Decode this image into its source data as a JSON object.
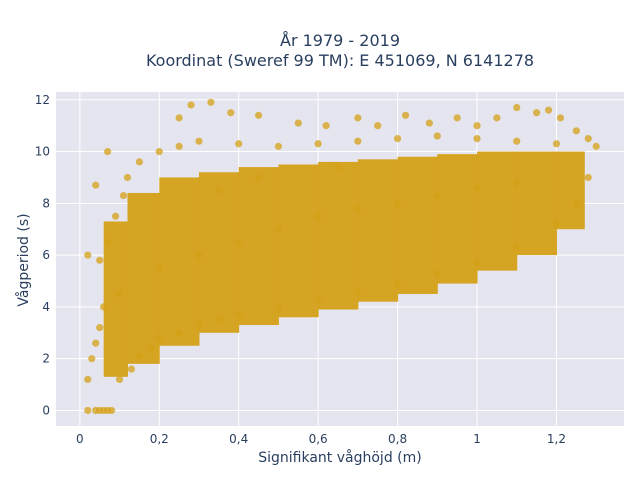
{
  "chart_data": {
    "type": "scatter",
    "title_lines": [
      "År 1979 - 2019",
      "Koordinat (Sweref 99 TM): E 451069, N 6141278"
    ],
    "xlabel": "Signifikant våghöjd (m)",
    "ylabel": "Vågperiod (s)",
    "xlim": [
      -0.06,
      1.37
    ],
    "ylim": [
      -0.6,
      12.3
    ],
    "xticks": [
      0,
      0.2,
      0.4,
      0.6,
      0.8,
      1,
      1.2
    ],
    "xtick_labels": [
      "0",
      "0,2",
      "0,4",
      "0,6",
      "0,8",
      "1",
      "1,2"
    ],
    "yticks": [
      0,
      2,
      4,
      6,
      8,
      10,
      12
    ],
    "ytick_labels": [
      "0",
      "2",
      "4",
      "6",
      "8",
      "10",
      "12"
    ],
    "grid": true,
    "marker_color": "#D4A017",
    "plot_background": "#E5E5EF",
    "series": [
      {
        "points": [
          [
            0.02,
            1.2
          ],
          [
            0.03,
            2.0
          ],
          [
            0.04,
            2.6
          ],
          [
            0.05,
            3.2
          ],
          [
            0.06,
            4.0
          ],
          [
            0.05,
            5.8
          ],
          [
            0.07,
            6.5
          ],
          [
            0.09,
            7.5
          ],
          [
            0.11,
            8.3
          ],
          [
            0.1,
            1.2
          ],
          [
            0.13,
            1.6
          ],
          [
            0.15,
            2.1
          ],
          [
            0.18,
            2.4
          ],
          [
            0.2,
            2.8
          ],
          [
            0.25,
            3.0
          ],
          [
            0.3,
            3.3
          ],
          [
            0.35,
            3.5
          ],
          [
            0.4,
            3.7
          ],
          [
            0.5,
            4.0
          ],
          [
            0.6,
            4.3
          ],
          [
            0.7,
            4.6
          ],
          [
            0.8,
            4.9
          ],
          [
            0.9,
            5.3
          ],
          [
            1.0,
            5.7
          ],
          [
            1.1,
            6.3
          ],
          [
            1.2,
            7.2
          ],
          [
            1.25,
            8.0
          ],
          [
            1.28,
            9.0
          ],
          [
            1.3,
            10.2
          ],
          [
            0.12,
            9.0
          ],
          [
            0.15,
            9.6
          ],
          [
            0.2,
            10.0
          ],
          [
            0.25,
            10.2
          ],
          [
            0.3,
            10.4
          ],
          [
            0.4,
            10.3
          ],
          [
            0.5,
            10.2
          ],
          [
            0.6,
            10.3
          ],
          [
            0.7,
            10.4
          ],
          [
            0.8,
            10.5
          ],
          [
            0.9,
            10.6
          ],
          [
            1.0,
            10.5
          ],
          [
            1.1,
            10.4
          ],
          [
            1.2,
            10.3
          ],
          [
            0.25,
            11.3
          ],
          [
            0.28,
            11.8
          ],
          [
            0.33,
            11.9
          ],
          [
            0.38,
            11.5
          ],
          [
            0.45,
            11.4
          ],
          [
            0.55,
            11.1
          ],
          [
            0.62,
            11.0
          ],
          [
            0.7,
            11.3
          ],
          [
            0.75,
            11.0
          ],
          [
            0.82,
            11.4
          ],
          [
            0.88,
            11.1
          ],
          [
            0.95,
            11.3
          ],
          [
            1.0,
            11.0
          ],
          [
            1.05,
            11.3
          ],
          [
            1.1,
            11.7
          ],
          [
            1.15,
            11.5
          ],
          [
            1.18,
            11.6
          ],
          [
            1.21,
            11.3
          ],
          [
            1.25,
            10.8
          ],
          [
            1.28,
            10.5
          ],
          [
            0.07,
            10.0
          ],
          [
            0.04,
            8.7
          ],
          [
            0.02,
            6.0
          ],
          [
            0.1,
            4.5
          ],
          [
            0.2,
            5.5
          ],
          [
            0.3,
            6.0
          ],
          [
            0.4,
            6.5
          ],
          [
            0.5,
            7.0
          ],
          [
            0.6,
            7.5
          ],
          [
            0.7,
            7.8
          ],
          [
            0.8,
            8.0
          ],
          [
            0.9,
            8.3
          ],
          [
            1.0,
            8.6
          ],
          [
            1.1,
            8.8
          ],
          [
            0.35,
            8.5
          ],
          [
            0.45,
            9.0
          ],
          [
            0.65,
            9.4
          ]
        ]
      }
    ],
    "bands": [
      {
        "x0": 0.06,
        "x1": 0.12,
        "y0": 1.3,
        "y1": 7.3
      },
      {
        "x0": 0.12,
        "x1": 0.2,
        "y0": 1.8,
        "y1": 8.4
      },
      {
        "x0": 0.2,
        "x1": 0.3,
        "y0": 2.5,
        "y1": 9.0
      },
      {
        "x0": 0.3,
        "x1": 0.4,
        "y0": 3.0,
        "y1": 9.2
      },
      {
        "x0": 0.4,
        "x1": 0.5,
        "y0": 3.3,
        "y1": 9.4
      },
      {
        "x0": 0.5,
        "x1": 0.6,
        "y0": 3.6,
        "y1": 9.5
      },
      {
        "x0": 0.6,
        "x1": 0.7,
        "y0": 3.9,
        "y1": 9.6
      },
      {
        "x0": 0.7,
        "x1": 0.8,
        "y0": 4.2,
        "y1": 9.7
      },
      {
        "x0": 0.8,
        "x1": 0.9,
        "y0": 4.5,
        "y1": 9.8
      },
      {
        "x0": 0.9,
        "x1": 1.0,
        "y0": 4.9,
        "y1": 9.9
      },
      {
        "x0": 1.0,
        "x1": 1.1,
        "y0": 5.4,
        "y1": 10.0
      },
      {
        "x0": 1.1,
        "x1": 1.2,
        "y0": 6.0,
        "y1": 10.0
      },
      {
        "x0": 1.2,
        "x1": 1.27,
        "y0": 7.0,
        "y1": 10.0
      }
    ],
    "zero_points": [
      [
        0.02,
        0
      ],
      [
        0.04,
        0
      ],
      [
        0.05,
        0
      ],
      [
        0.06,
        0
      ],
      [
        0.07,
        0
      ],
      [
        0.08,
        0
      ]
    ]
  }
}
